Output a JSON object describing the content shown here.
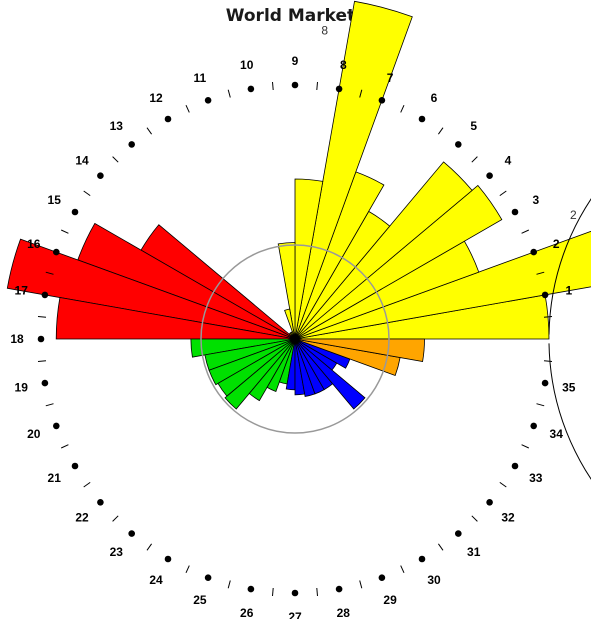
{
  "chart_data": {
    "type": "polar-bar",
    "title": "World Markets",
    "sectors": 36,
    "tick_labels": [
      "1",
      "2",
      "3",
      "4",
      "5",
      "6",
      "7",
      "8",
      "9",
      "10",
      "11",
      "12",
      "13",
      "14",
      "15",
      "16",
      "17",
      "18",
      "19",
      "20",
      "21",
      "22",
      "23",
      "24",
      "25",
      "26",
      "27",
      "28",
      "29",
      "30",
      "31",
      "32",
      "33",
      "34",
      "35"
    ],
    "values": [
      1.0,
      1.34,
      0.77,
      0.94,
      0.91,
      0.58,
      0.7,
      1.35,
      0.63,
      0.38,
      0.12,
      0.03,
      0.03,
      0.03,
      0.7,
      0.91,
      1.15,
      0.94,
      0.41,
      0.36,
      0.36,
      0.35,
      0.36,
      0.28,
      0.22,
      0.18,
      0.2,
      0.22,
      0.23,
      0.23,
      0.23,
      0.36,
      0.19,
      0.23,
      0.42,
      0.51
    ],
    "colors": [
      "#ffff00",
      "#ffff00",
      "#ffff00",
      "#ffff00",
      "#ffff00",
      "#ffff00",
      "#ffff00",
      "#ffff00",
      "#ffff00",
      "#ffff00",
      "#ffff00",
      "#ffff00",
      "#ffff00",
      "#ffff00",
      "#ff0000",
      "#ff0000",
      "#ff0000",
      "#ff0000",
      "#00e000",
      "#00e000",
      "#00e000",
      "#00e000",
      "#00e000",
      "#00e000",
      "#00e000",
      "#00e000",
      "#0000ff",
      "#0000ff",
      "#0000ff",
      "#0000ff",
      "#0000ff",
      "#0000ff",
      "#0000ff",
      "#0000ff",
      "#ffa500",
      "#ffa500"
    ],
    "data_labels": [
      {
        "text": "2"
      },
      {
        "text": "8"
      }
    ],
    "reference_circle": 0.37,
    "outer_circle": 1.0
  }
}
